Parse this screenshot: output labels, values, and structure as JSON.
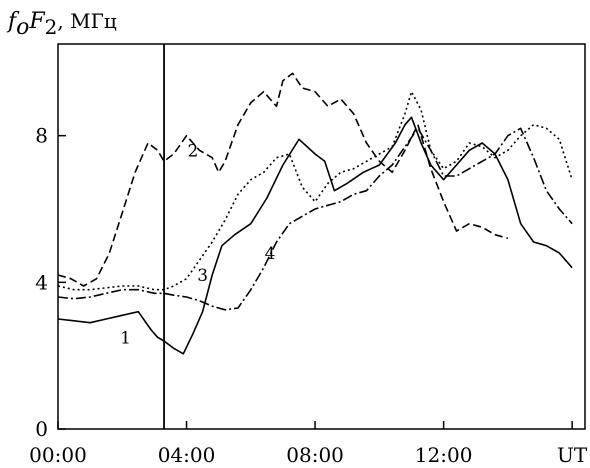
{
  "chart_data": {
    "type": "line",
    "ylabel": {
      "f": "f",
      "sub_o": "o",
      "F": "F",
      "sub_2": "2",
      "unit": ", МГц"
    },
    "xlabel": "UT",
    "xlim": [
      0,
      16.4
    ],
    "ylim": [
      0,
      10.5
    ],
    "x_ticks": [
      {
        "value": 0,
        "label": "00:00"
      },
      {
        "value": 4,
        "label": "04:00"
      },
      {
        "value": 8,
        "label": "08:00"
      },
      {
        "value": 12,
        "label": "12:00"
      },
      {
        "value": 16,
        "label": "UT"
      }
    ],
    "y_ticks": [
      {
        "value": 0,
        "label": "0"
      },
      {
        "value": 4,
        "label": "4"
      },
      {
        "value": 8,
        "label": "8"
      }
    ],
    "vline_x": 3.3,
    "grid": false,
    "series": [
      {
        "name": "1",
        "label_at": [
          2.1,
          2.5
        ],
        "dash": "",
        "x": [
          0.0,
          0.5,
          1.0,
          1.5,
          2.0,
          2.5,
          2.9,
          3.1,
          3.3,
          3.6,
          3.9,
          4.2,
          4.5,
          4.8,
          5.1,
          5.5,
          6.0,
          6.5,
          7.0,
          7.5,
          8.0,
          8.3,
          8.6,
          9.0,
          9.5,
          10.0,
          10.5,
          10.8,
          11.0,
          11.3,
          11.6,
          12.0,
          12.4,
          12.8,
          13.2,
          13.6,
          14.0,
          14.4,
          14.8,
          15.2,
          15.6,
          16.0
        ],
        "y": [
          3.0,
          2.95,
          2.9,
          3.0,
          3.1,
          3.2,
          2.7,
          2.5,
          2.4,
          2.2,
          2.05,
          2.6,
          3.2,
          4.2,
          5.0,
          5.3,
          5.6,
          6.3,
          7.2,
          7.9,
          7.5,
          7.3,
          6.5,
          6.7,
          7.0,
          7.2,
          7.8,
          8.3,
          8.5,
          7.8,
          7.2,
          6.8,
          7.2,
          7.6,
          7.8,
          7.5,
          6.8,
          5.6,
          5.1,
          5.0,
          4.8,
          4.4
        ]
      },
      {
        "name": "2",
        "label_at": [
          4.2,
          7.6
        ],
        "dash": "8,4",
        "x": [
          0.0,
          0.4,
          0.8,
          1.2,
          1.6,
          2.0,
          2.4,
          2.8,
          3.1,
          3.3,
          3.6,
          4.0,
          4.4,
          4.8,
          5.0,
          5.2,
          5.6,
          6.0,
          6.4,
          6.8,
          7.0,
          7.3,
          7.6,
          8.0,
          8.4,
          8.8,
          9.2,
          9.6,
          10.0,
          10.4,
          10.8,
          11.2,
          11.6,
          12.0,
          12.4,
          12.8,
          13.2,
          13.6,
          14.0
        ],
        "y": [
          4.2,
          4.1,
          3.9,
          4.1,
          4.8,
          5.9,
          7.0,
          7.8,
          7.6,
          7.3,
          7.5,
          8.0,
          7.6,
          7.4,
          7.0,
          7.3,
          8.3,
          8.9,
          9.2,
          8.8,
          9.5,
          9.7,
          9.3,
          9.2,
          8.8,
          9.0,
          8.6,
          7.8,
          7.3,
          7.0,
          7.6,
          8.3,
          7.1,
          6.2,
          5.4,
          5.6,
          5.5,
          5.3,
          5.2
        ]
      },
      {
        "name": "3",
        "label_at": [
          4.5,
          4.2
        ],
        "dash": "2,3",
        "x": [
          0.0,
          0.5,
          1.0,
          1.5,
          2.0,
          2.5,
          3.0,
          3.3,
          3.6,
          4.0,
          4.4,
          4.8,
          5.2,
          5.6,
          6.0,
          6.4,
          6.8,
          7.2,
          7.6,
          8.0,
          8.4,
          8.8,
          9.2,
          9.6,
          10.0,
          10.4,
          10.8,
          11.0,
          11.3,
          11.6,
          12.0,
          12.4,
          12.8,
          13.2,
          13.6,
          14.0,
          14.4,
          14.8,
          15.2,
          15.6,
          16.0
        ],
        "y": [
          3.9,
          3.8,
          3.8,
          3.85,
          3.9,
          3.9,
          3.8,
          3.8,
          3.9,
          4.1,
          4.6,
          5.1,
          5.7,
          6.4,
          6.8,
          7.0,
          7.4,
          7.5,
          6.6,
          6.2,
          6.7,
          7.0,
          7.1,
          7.3,
          7.5,
          7.7,
          8.6,
          9.2,
          8.7,
          7.6,
          7.1,
          7.3,
          7.8,
          7.7,
          7.4,
          7.6,
          8.0,
          8.3,
          8.2,
          7.9,
          6.8
        ]
      },
      {
        "name": "4",
        "label_at": [
          6.6,
          4.8
        ],
        "dash": "10,3,2,3",
        "x": [
          0.0,
          0.5,
          1.0,
          1.5,
          2.0,
          2.5,
          3.0,
          3.3,
          3.6,
          4.0,
          4.4,
          4.8,
          5.2,
          5.6,
          6.0,
          6.4,
          6.8,
          7.2,
          7.6,
          8.0,
          8.4,
          8.8,
          9.2,
          9.6,
          10.0,
          10.4,
          10.8,
          11.2,
          11.6,
          12.0,
          12.4,
          12.8,
          13.2,
          13.6,
          14.0,
          14.4,
          14.8,
          15.2,
          15.6,
          16.0
        ],
        "y": [
          3.6,
          3.55,
          3.6,
          3.7,
          3.8,
          3.8,
          3.7,
          3.7,
          3.65,
          3.6,
          3.5,
          3.35,
          3.25,
          3.3,
          3.8,
          4.4,
          5.1,
          5.6,
          5.8,
          6.0,
          6.1,
          6.2,
          6.4,
          6.5,
          6.9,
          7.2,
          7.7,
          8.2,
          7.6,
          6.9,
          6.9,
          7.1,
          7.3,
          7.5,
          8.0,
          8.2,
          7.4,
          6.5,
          6.0,
          5.6
        ]
      }
    ]
  }
}
